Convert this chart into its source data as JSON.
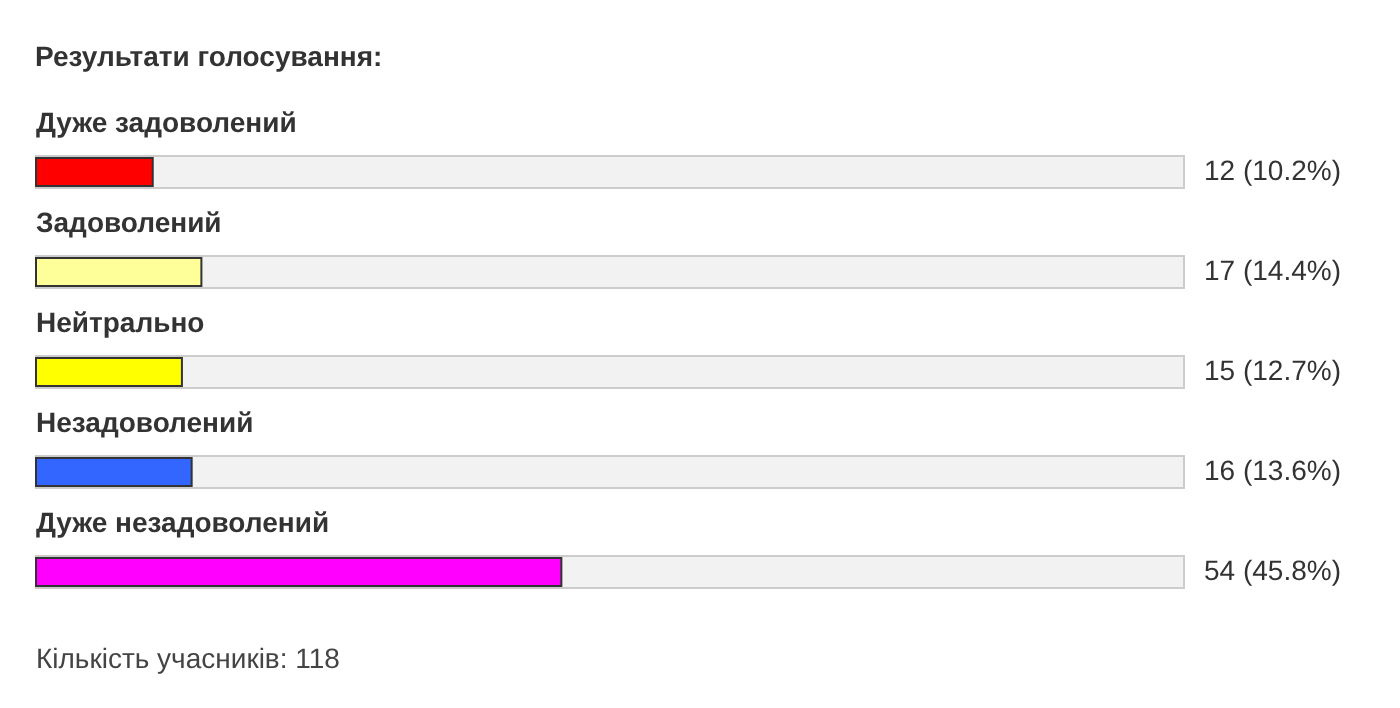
{
  "chart_data": {
    "type": "bar",
    "orientation": "horizontal",
    "title": "Результати голосування:",
    "categories": [
      "Дуже задоволений",
      "Задоволений",
      "Нейтрально",
      "Незадоволений",
      "Дуже незадоволений"
    ],
    "values": [
      12,
      17,
      15,
      16,
      54
    ],
    "colors": [
      "#ff0000",
      "#ffff99",
      "#ffff00",
      "#3366ff",
      "#ff00ff"
    ],
    "value_labels": [
      "12 (10.2%)",
      "17 (14.4%)",
      "15 (12.7%)",
      "16 (13.6%)",
      "54 (45.8%)"
    ],
    "xlim": [
      0,
      118
    ],
    "tick_labels": false,
    "annotations": [
      "Кількість учасників: 118"
    ]
  }
}
